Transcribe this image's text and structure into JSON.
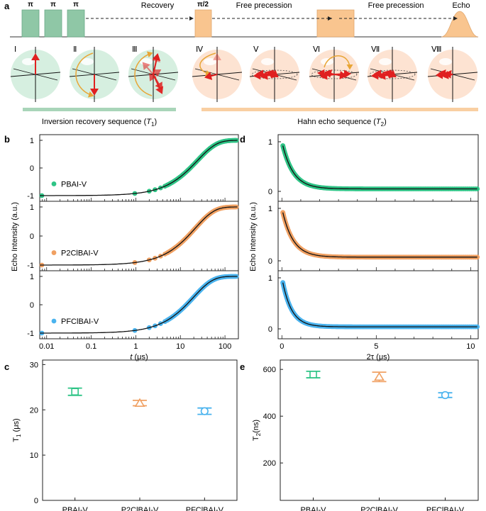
{
  "figure": {
    "panel_labels": {
      "a": "a",
      "b": "b",
      "c": "c",
      "d": "d",
      "e": "e"
    },
    "panel_a": {
      "pulse_labels": [
        "π",
        "π",
        "π",
        "π/2"
      ],
      "recovery": "Recovery",
      "free_precession_1": "Free precession",
      "free_precession_2": "Free precession",
      "echo": "Echo",
      "roman": [
        "Ⅰ",
        "Ⅱ",
        "Ⅲ",
        "Ⅳ",
        "Ⅴ",
        "Ⅵ",
        "Ⅶ",
        "Ⅷ"
      ],
      "inversion_label": "Inversion recovery sequence (",
      "inversion_sym": "T",
      "inversion_sub": "1",
      "inversion_close": ")",
      "hahn_label": "Hahn echo sequence (",
      "hahn_sym": "T",
      "hahn_sub": "2",
      "hahn_close": ")"
    },
    "colors": {
      "green": "#2ec486",
      "orange": "#f0a062",
      "blue": "#4ab3ee",
      "green_box": "#8fc7a6",
      "orange_box": "#f9c58f",
      "green_bg": "#d6efe0",
      "orange_bg": "#fde3d2"
    }
  },
  "chart_data": [
    {
      "id": "b",
      "type": "line",
      "xscale": "log",
      "xlim": [
        0.007,
        200
      ],
      "xticks": [
        "0.01",
        "0.1",
        "1",
        "10",
        "100"
      ],
      "xlabel_t": "t",
      "xlabel_u": " (μs)",
      "ylabel": "Echo Intensity (a.u.)",
      "ylim": [
        -1.1,
        1.1
      ],
      "yticks": [
        "-1",
        "0",
        "1"
      ],
      "series": [
        {
          "name": "PBAI-V",
          "T1": 24
        },
        {
          "name": "P2ClBAI-V",
          "T1": 21.5
        },
        {
          "name": "PFClBAI-V",
          "T1": 19.7
        }
      ]
    },
    {
      "id": "d",
      "type": "line",
      "xlim": [
        -0.2,
        10.4
      ],
      "xticks": [
        "0",
        "5",
        "10"
      ],
      "xlabel": "2τ (μs)",
      "ylabel": "Echo Intensity (a.u.)",
      "ylim": [
        -0.15,
        1.15
      ],
      "yticks": [
        "0",
        "1"
      ],
      "series": [
        {
          "name": "PBAI-V",
          "T2_us": 0.58,
          "baseline": 0.05
        },
        {
          "name": "P2ClBAI-V",
          "T2_us": 0.57,
          "baseline": 0.07
        },
        {
          "name": "PFClBAI-V",
          "T2_us": 0.49,
          "baseline": 0.04
        }
      ]
    },
    {
      "id": "c",
      "type": "scatter",
      "categories": [
        "PBAI-V",
        "P2ClBAI-V",
        "PFClBAI-V"
      ],
      "ylabel": "T",
      "ylabel_sub": "1",
      "ylabel_unit": " (μs)",
      "ylim": [
        0,
        31
      ],
      "yticks": [
        "0",
        "10",
        "20",
        "30"
      ],
      "values": [
        24.0,
        21.5,
        19.7
      ],
      "errors": [
        0.8,
        0.6,
        0.7
      ],
      "markers": [
        "square",
        "triangle",
        "circle"
      ]
    },
    {
      "id": "e",
      "type": "scatter",
      "categories": [
        "PBAI-V",
        "P2ClBAI-V",
        "PFClBAI-V"
      ],
      "ylabel": "T",
      "ylabel_sub": "2",
      "ylabel_unit": "(ns)",
      "ylim": [
        40,
        640
      ],
      "yticks": [
        "200",
        "400",
        "600"
      ],
      "values": [
        578,
        568,
        490
      ],
      "errors": [
        14,
        20,
        10
      ],
      "markers": [
        "square",
        "triangle",
        "circle"
      ]
    }
  ]
}
